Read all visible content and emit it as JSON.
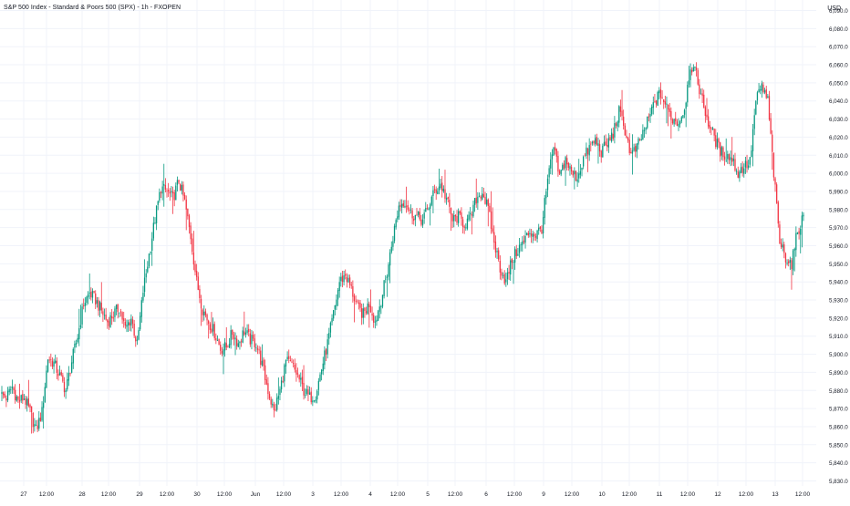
{
  "header": {
    "title": "S&P 500 Index - Standard & Poors 500 (SPX) - 1h - FXOPEN",
    "currency": "USD"
  },
  "colors": {
    "up": "#089981",
    "down": "#f23645",
    "grid": "#f0f3fa",
    "axis_text": "#131722",
    "background": "#ffffff"
  },
  "chart_data": {
    "type": "candlestick",
    "title": "S&P 500 Index - Standard & Poors 500 (SPX) - 1h - FXOPEN",
    "ylabel": "USD",
    "ylim": [
      5831,
      6095
    ],
    "grid": "on",
    "y_ticks": [
      "5,830.0",
      "5,840.0",
      "5,850.0",
      "5,860.0",
      "5,870.0",
      "5,880.0",
      "5,890.0",
      "5,900.0",
      "5,910.0",
      "5,920.0",
      "5,930.0",
      "5,940.0",
      "5,950.0",
      "5,960.0",
      "5,970.0",
      "5,980.0",
      "5,990.0",
      "6,000.0",
      "6,010.0",
      "6,020.0",
      "6,030.0",
      "6,040.0",
      "6,050.0",
      "6,060.0",
      "6,070.0",
      "6,080.0",
      "6,090.0"
    ],
    "x_ticks": [
      "27",
      "12:00",
      "28",
      "12:00",
      "29",
      "12:00",
      "30",
      "12:00",
      "Jun",
      "12:00",
      "3",
      "12:00",
      "4",
      "12:00",
      "5",
      "12:00",
      "6",
      "12:00",
      "9",
      "12:00",
      "10",
      "12:00",
      "11",
      "12:00",
      "12",
      "12:00",
      "13",
      "12:00"
    ],
    "anchors": [
      [
        0,
        5878
      ],
      [
        4,
        5876
      ],
      [
        8,
        5882
      ],
      [
        12,
        5874
      ],
      [
        16,
        5876
      ],
      [
        20,
        5868
      ],
      [
        24,
        5858
      ],
      [
        28,
        5868
      ],
      [
        32,
        5898
      ],
      [
        36,
        5895
      ],
      [
        40,
        5888
      ],
      [
        44,
        5880
      ],
      [
        48,
        5896
      ],
      [
        52,
        5910
      ],
      [
        56,
        5928
      ],
      [
        60,
        5934
      ],
      [
        64,
        5930
      ],
      [
        68,
        5924
      ],
      [
        72,
        5918
      ],
      [
        76,
        5922
      ],
      [
        80,
        5926
      ],
      [
        84,
        5914
      ],
      [
        88,
        5920
      ],
      [
        92,
        5905
      ],
      [
        96,
        5935
      ],
      [
        100,
        5955
      ],
      [
        104,
        5975
      ],
      [
        108,
        5992
      ],
      [
        112,
        5990
      ],
      [
        116,
        5986
      ],
      [
        120,
        5996
      ],
      [
        124,
        5984
      ],
      [
        128,
        5965
      ],
      [
        132,
        5940
      ],
      [
        136,
        5925
      ],
      [
        140,
        5918
      ],
      [
        144,
        5912
      ],
      [
        148,
        5903
      ],
      [
        152,
        5904
      ],
      [
        156,
        5912
      ],
      [
        160,
        5906
      ],
      [
        164,
        5913
      ],
      [
        168,
        5908
      ],
      [
        172,
        5906
      ],
      [
        176,
        5894
      ],
      [
        180,
        5880
      ],
      [
        184,
        5868
      ],
      [
        188,
        5880
      ],
      [
        192,
        5896
      ],
      [
        196,
        5894
      ],
      [
        200,
        5888
      ],
      [
        204,
        5880
      ],
      [
        208,
        5876
      ],
      [
        212,
        5878
      ],
      [
        216,
        5892
      ],
      [
        220,
        5906
      ],
      [
        224,
        5922
      ],
      [
        228,
        5940
      ],
      [
        232,
        5944
      ],
      [
        236,
        5936
      ],
      [
        240,
        5926
      ],
      [
        244,
        5922
      ],
      [
        248,
        5928
      ],
      [
        252,
        5918
      ],
      [
        256,
        5930
      ],
      [
        260,
        5945
      ],
      [
        264,
        5965
      ],
      [
        268,
        5982
      ],
      [
        272,
        5985
      ],
      [
        276,
        5978
      ],
      [
        280,
        5976
      ],
      [
        284,
        5974
      ],
      [
        288,
        5982
      ],
      [
        292,
        5990
      ],
      [
        296,
        5994
      ],
      [
        300,
        5986
      ],
      [
        304,
        5974
      ],
      [
        308,
        5976
      ],
      [
        312,
        5972
      ],
      [
        316,
        5975
      ],
      [
        320,
        5986
      ],
      [
        324,
        5990
      ],
      [
        328,
        5980
      ],
      [
        332,
        5962
      ],
      [
        336,
        5948
      ],
      [
        340,
        5940
      ],
      [
        344,
        5952
      ],
      [
        348,
        5958
      ],
      [
        352,
        5962
      ],
      [
        356,
        5968
      ],
      [
        360,
        5966
      ],
      [
        364,
        5970
      ],
      [
        368,
        5996
      ],
      [
        372,
        6014
      ],
      [
        376,
        5998
      ],
      [
        380,
        6008
      ],
      [
        384,
        6000
      ],
      [
        388,
        5998
      ],
      [
        392,
        6008
      ],
      [
        396,
        6014
      ],
      [
        400,
        6018
      ],
      [
        404,
        6012
      ],
      [
        408,
        6016
      ],
      [
        412,
        6022
      ],
      [
        416,
        6034
      ],
      [
        420,
        6024
      ],
      [
        424,
        6010
      ],
      [
        428,
        6014
      ],
      [
        432,
        6022
      ],
      [
        436,
        6030
      ],
      [
        440,
        6040
      ],
      [
        444,
        6044
      ],
      [
        448,
        6036
      ],
      [
        452,
        6030
      ],
      [
        456,
        6028
      ],
      [
        460,
        6036
      ],
      [
        464,
        6060
      ],
      [
        468,
        6054
      ],
      [
        472,
        6040
      ],
      [
        476,
        6028
      ],
      [
        480,
        6020
      ],
      [
        484,
        6012
      ],
      [
        488,
        6010
      ],
      [
        492,
        6008
      ],
      [
        496,
        6000
      ],
      [
        500,
        6004
      ],
      [
        504,
        6006
      ],
      [
        508,
        6040
      ],
      [
        512,
        6048
      ],
      [
        516,
        6040
      ],
      [
        520,
        6000
      ],
      [
        524,
        5962
      ],
      [
        528,
        5954
      ],
      [
        532,
        5950
      ],
      [
        536,
        5968
      ],
      [
        540,
        5976
      ]
    ]
  }
}
